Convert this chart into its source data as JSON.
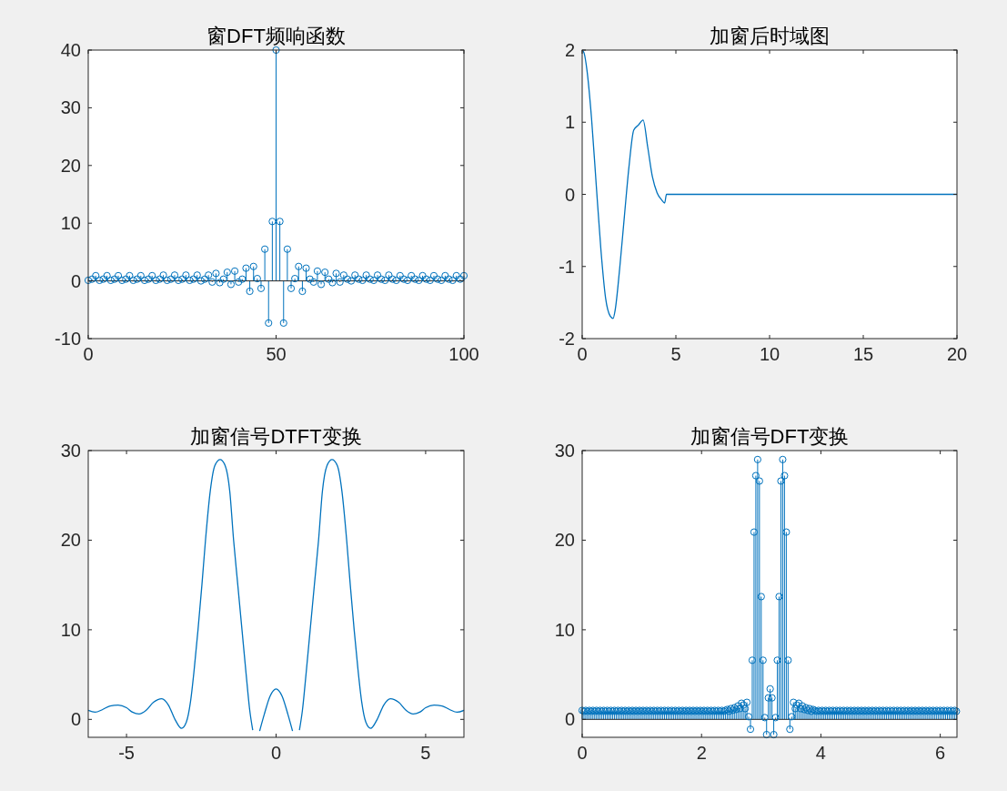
{
  "chart_data": [
    {
      "type": "lollipop",
      "title": "窗DFT频响函数",
      "color": "#0072bd",
      "marker": "circle",
      "xlim": [
        0,
        100
      ],
      "ylim": [
        -10,
        40
      ],
      "xticks": [
        0,
        50,
        100
      ],
      "yticks": [
        -10,
        0,
        10,
        20,
        30,
        40
      ],
      "x": [
        0,
        1,
        2,
        3,
        4,
        5,
        6,
        7,
        8,
        9,
        10,
        11,
        12,
        13,
        14,
        15,
        16,
        17,
        18,
        19,
        20,
        21,
        22,
        23,
        24,
        25,
        26,
        27,
        28,
        29,
        30,
        31,
        32,
        33,
        34,
        35,
        36,
        37,
        38,
        39,
        40,
        41,
        42,
        43,
        44,
        45,
        46,
        47,
        48,
        49,
        50,
        51,
        52,
        53,
        54,
        55,
        56,
        57,
        58,
        59,
        60,
        61,
        62,
        63,
        64,
        65,
        66,
        67,
        68,
        69,
        70,
        71,
        72,
        73,
        74,
        75,
        76,
        77,
        78,
        79,
        80,
        81,
        82,
        83,
        84,
        85,
        86,
        87,
        88,
        89,
        90,
        91,
        92,
        93,
        94,
        95,
        96,
        97,
        98,
        99,
        100
      ],
      "values": [
        0.1,
        0.3,
        0.9,
        0.1,
        0.3,
        0.9,
        0.1,
        0.3,
        0.9,
        0.1,
        0.3,
        0.9,
        0.1,
        0.3,
        0.9,
        0.1,
        0.3,
        0.9,
        0.1,
        0.3,
        1.0,
        0.1,
        0.3,
        1.0,
        0.1,
        0.3,
        1.0,
        0.1,
        0.3,
        1.0,
        0.0,
        0.3,
        1.0,
        -0.2,
        1.3,
        -0.3,
        0.3,
        1.5,
        -0.6,
        1.7,
        -0.2,
        0.3,
        2.2,
        -1.8,
        2.5,
        0.4,
        -1.3,
        5.5,
        -7.3,
        10.3,
        40,
        10.3,
        -7.3,
        5.5,
        -1.3,
        0.4,
        2.5,
        -1.8,
        2.2,
        0.3,
        -0.2,
        1.7,
        -0.6,
        1.5,
        0.3,
        -0.3,
        1.3,
        -0.2,
        1.0,
        0.3,
        0.0,
        1.0,
        0.3,
        0.1,
        1.0,
        0.3,
        0.1,
        1.0,
        0.3,
        0.1,
        1.0,
        0.3,
        0.1,
        0.9,
        0.3,
        0.1,
        0.9,
        0.3,
        0.1,
        0.9,
        0.3,
        0.1,
        0.9,
        0.3,
        0.1,
        0.9,
        0.3,
        0.1,
        0.9,
        0.3,
        0.9
      ],
      "ref_lines": [
        {
          "axis": "y",
          "value": 0,
          "color": "#262626"
        }
      ]
    },
    {
      "type": "line",
      "title": "加窗后时域图",
      "color": "#0072bd",
      "xlim": [
        0,
        20
      ],
      "ylim": [
        -2,
        2
      ],
      "xticks": [
        0,
        5,
        10,
        15,
        20
      ],
      "yticks": [
        -2,
        -1,
        0,
        1,
        2
      ],
      "x": [
        0,
        0.1,
        0.25,
        0.5,
        0.75,
        1,
        1.25,
        1.5,
        1.65,
        1.75,
        2,
        2.25,
        2.5,
        2.75,
        3,
        3.25,
        3.5,
        3.75,
        4,
        4.25,
        4.4,
        4.5,
        20
      ],
      "values": [
        2,
        1.96,
        1.73,
        1.05,
        0.13,
        -0.77,
        -1.44,
        -1.69,
        -1.72,
        -1.62,
        -1.03,
        -0.31,
        0.39,
        0.89,
        0.96,
        1.03,
        0.65,
        0.24,
        0.02,
        -0.08,
        -0.12,
        0,
        0
      ]
    },
    {
      "type": "line",
      "title": "加窗信号DTFT变换",
      "color": "#0072bd",
      "xlim": [
        -6.28,
        6.28
      ],
      "ylim": [
        -2,
        30
      ],
      "xticks": [
        -5,
        0,
        5
      ],
      "yticks": [
        0,
        10,
        20,
        30
      ],
      "x": [
        -6.28,
        -6.05,
        -5.8,
        -5.55,
        -5.28,
        -5.0,
        -4.8,
        -4.58,
        -4.35,
        -4.1,
        -3.82,
        -3.6,
        -3.38,
        -3.16,
        -3.0,
        -2.86,
        -2.74,
        -2.61,
        -2.48,
        -2.36,
        -2.2,
        -2.05,
        -1.87,
        -1.7,
        -1.55,
        -1.42,
        -1.28,
        -1.14,
        -1.0,
        -0.88,
        -0.78,
        -0.68,
        -0.55,
        -0.4,
        -0.2,
        0,
        0.2,
        0.4,
        0.55,
        0.68,
        0.78,
        0.88,
        1.0,
        1.14,
        1.28,
        1.42,
        1.55,
        1.7,
        1.87,
        2.05,
        2.2,
        2.36,
        2.48,
        2.61,
        2.74,
        2.86,
        3.0,
        3.16,
        3.38,
        3.6,
        3.82,
        4.1,
        4.35,
        4.58,
        4.8,
        5.0,
        5.28,
        5.55,
        5.8,
        6.05,
        6.28
      ],
      "values": [
        1.0,
        0.8,
        1.1,
        1.5,
        1.6,
        1.3,
        0.8,
        0.6,
        1.0,
        1.9,
        2.3,
        1.6,
        0.0,
        -1.0,
        -0.3,
        2.0,
        5.5,
        10,
        15,
        20,
        25.5,
        28.3,
        29,
        28.3,
        25.5,
        20,
        15,
        10,
        5,
        1.0,
        -1.2,
        null,
        -1.3,
        0.5,
        2.6,
        3.4,
        2.6,
        0.5,
        -1.3,
        null,
        -1.2,
        1.0,
        5,
        10,
        15,
        20,
        25.5,
        28.3,
        29,
        28.3,
        25.5,
        20,
        15,
        10,
        5.5,
        2.0,
        -0.3,
        -1.0,
        0.0,
        1.6,
        2.3,
        1.9,
        1.0,
        0.6,
        0.8,
        1.3,
        1.6,
        1.5,
        1.1,
        0.8,
        1.0
      ]
    },
    {
      "type": "lollipop",
      "title": "加窗信号DFT变换",
      "color": "#0072bd",
      "marker": "circle",
      "xlim": [
        0,
        6.28
      ],
      "ylim": [
        -2,
        30
      ],
      "xticks": [
        0,
        2,
        4,
        6
      ],
      "yticks": [
        0,
        10,
        20,
        30
      ],
      "x": [
        0,
        0.03,
        0.06,
        0.09,
        0.12,
        0.15,
        0.18,
        0.21,
        0.24,
        0.27,
        0.3,
        0.33,
        0.36,
        0.39,
        0.42,
        0.45,
        0.48,
        0.51,
        0.54,
        0.57,
        0.6,
        0.63,
        0.66,
        0.69,
        0.72,
        0.75,
        0.78,
        0.81,
        0.84,
        0.87,
        0.9,
        0.93,
        0.96,
        0.99,
        1.02,
        1.05,
        1.08,
        1.11,
        1.14,
        1.17,
        1.2,
        1.23,
        1.26,
        1.29,
        1.32,
        1.35,
        1.38,
        1.41,
        1.44,
        1.47,
        1.5,
        1.53,
        1.56,
        1.59,
        1.62,
        1.65,
        1.68,
        1.71,
        1.74,
        1.77,
        1.8,
        1.83,
        1.86,
        1.89,
        1.92,
        1.95,
        1.98,
        2.01,
        2.04,
        2.07,
        2.1,
        2.13,
        2.16,
        2.19,
        2.22,
        2.25,
        2.28,
        2.31,
        2.34,
        2.37,
        2.4,
        2.43,
        2.46,
        2.49,
        2.52,
        2.55,
        2.58,
        2.61,
        2.64,
        2.67,
        2.7,
        2.73,
        2.76,
        2.79,
        2.82,
        2.85,
        2.88,
        2.91,
        2.94,
        2.97,
        3.0,
        3.03,
        3.06,
        3.09,
        3.12,
        3.15,
        3.18,
        3.21,
        3.24,
        3.27,
        3.3,
        3.33,
        3.36,
        3.39,
        3.42,
        3.45,
        3.48,
        3.51,
        3.54,
        3.57,
        3.6,
        3.63,
        3.66,
        3.69,
        3.72,
        3.75,
        3.78,
        3.81,
        3.84,
        3.87,
        3.9,
        3.93,
        3.96,
        3.99,
        4.02,
        4.05,
        4.08,
        4.11,
        4.14,
        4.17,
        4.2,
        4.23,
        4.26,
        4.29,
        4.32,
        4.35,
        4.38,
        4.41,
        4.44,
        4.47,
        4.5,
        4.53,
        4.56,
        4.59,
        4.62,
        4.65,
        4.68,
        4.71,
        4.74,
        4.77,
        4.8,
        4.83,
        4.86,
        4.89,
        4.92,
        4.95,
        4.98,
        5.01,
        5.04,
        5.07,
        5.1,
        5.13,
        5.16,
        5.19,
        5.22,
        5.25,
        5.28,
        5.31,
        5.34,
        5.37,
        5.4,
        5.43,
        5.46,
        5.49,
        5.52,
        5.55,
        5.58,
        5.61,
        5.64,
        5.67,
        5.7,
        5.73,
        5.76,
        5.79,
        5.82,
        5.85,
        5.88,
        5.91,
        5.94,
        5.97,
        6.0,
        6.03,
        6.06,
        6.09,
        6.12,
        6.15,
        6.18,
        6.21,
        6.24,
        6.27
      ],
      "values": [
        1,
        0.9,
        1,
        0.9,
        1,
        0.9,
        1,
        0.9,
        1,
        0.9,
        1,
        0.9,
        1,
        0.9,
        1,
        0.9,
        1,
        0.9,
        1,
        0.9,
        1,
        0.9,
        1,
        0.9,
        1,
        0.9,
        1,
        0.9,
        1,
        0.9,
        1,
        0.9,
        1,
        0.9,
        1,
        0.9,
        1,
        0.9,
        1,
        0.9,
        1,
        0.9,
        1,
        0.9,
        1,
        0.9,
        1,
        0.9,
        1,
        0.9,
        1,
        0.9,
        1,
        0.9,
        1,
        0.9,
        1,
        0.9,
        1,
        0.9,
        1,
        0.9,
        1,
        0.9,
        1,
        0.9,
        1,
        0.9,
        1,
        0.9,
        1,
        0.9,
        1,
        0.9,
        1,
        0.9,
        1,
        0.9,
        1,
        0.9,
        1,
        1.1,
        0.9,
        1.2,
        1,
        1.3,
        1.1,
        1.5,
        1.2,
        1.8,
        1.6,
        1.2,
        1.9,
        0.3,
        -1.1,
        6.6,
        20.9,
        27.2,
        29,
        26.6,
        13.7,
        6.6,
        0.2,
        -1.7,
        2.4,
        3.4,
        2.4,
        -1.7,
        0.2,
        6.6,
        13.7,
        26.6,
        29,
        27.2,
        20.9,
        6.6,
        -1.1,
        0.3,
        1.9,
        1.2,
        1.6,
        1.8,
        1.2,
        1.5,
        1.1,
        1.3,
        1,
        1.2,
        0.9,
        1.1,
        1,
        0.9,
        1,
        0.9,
        1,
        0.9,
        1,
        0.9,
        1,
        0.9,
        1,
        0.9,
        1,
        0.9,
        1,
        0.9,
        1,
        0.9,
        1,
        0.9,
        1,
        0.9,
        1,
        0.9,
        1,
        0.9,
        1,
        0.9,
        1,
        0.9,
        1,
        0.9,
        1,
        0.9,
        1,
        0.9,
        1,
        0.9,
        1,
        0.9,
        1,
        0.9,
        1,
        0.9,
        1,
        0.9,
        1,
        0.9,
        1,
        0.9,
        1,
        0.9,
        1,
        0.9,
        1,
        0.9,
        1,
        0.9,
        1,
        0.9,
        1,
        0.9,
        1,
        0.9,
        1,
        0.9,
        1,
        0.9,
        1,
        0.9,
        1,
        0.9,
        1,
        0.9,
        1,
        0.9,
        1,
        0.9,
        1,
        0.9
      ],
      "ref_lines": [
        {
          "axis": "y",
          "value": 0,
          "color": "#262626"
        }
      ]
    }
  ]
}
